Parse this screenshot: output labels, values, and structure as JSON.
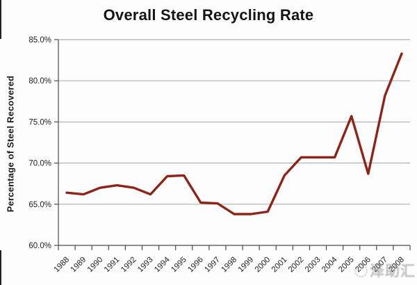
{
  "title": "Overall Steel Recycling Rate",
  "watermark": {
    "text": "泽助汇",
    "icon": "swirl-stamp",
    "color": "#7e7e7e"
  },
  "colors": {
    "line": "#8e2418",
    "gridline": "#9a9a9a",
    "axis": "#4a4a4a",
    "background": "#fdfdfd",
    "text": "#1c1c1c"
  },
  "chart_data": {
    "type": "line",
    "title": "Overall Steel Recycling Rate",
    "xlabel": "",
    "ylabel": "Percentage of Steel Recovered",
    "categories": [
      "1988",
      "1989",
      "1990",
      "1991",
      "1992",
      "1993",
      "1994",
      "1995",
      "1996",
      "1997",
      "1998",
      "1999",
      "2000",
      "2001",
      "2002",
      "2003",
      "2004",
      "2005",
      "2006",
      "2007",
      "2008"
    ],
    "values": [
      66.4,
      66.2,
      67.0,
      67.3,
      67.0,
      66.2,
      68.4,
      68.5,
      65.2,
      65.1,
      63.8,
      63.8,
      64.1,
      68.5,
      70.7,
      70.7,
      70.7,
      75.7,
      68.7,
      78.2,
      83.3
    ],
    "ylim": [
      60,
      85
    ],
    "ytick_step": 5,
    "ytick_labels": [
      "60.0%",
      "65.0%",
      "70.0%",
      "75.0%",
      "80.0%",
      "85.0%"
    ],
    "grid": true,
    "legend": "none",
    "line_color": "#8e2418"
  }
}
